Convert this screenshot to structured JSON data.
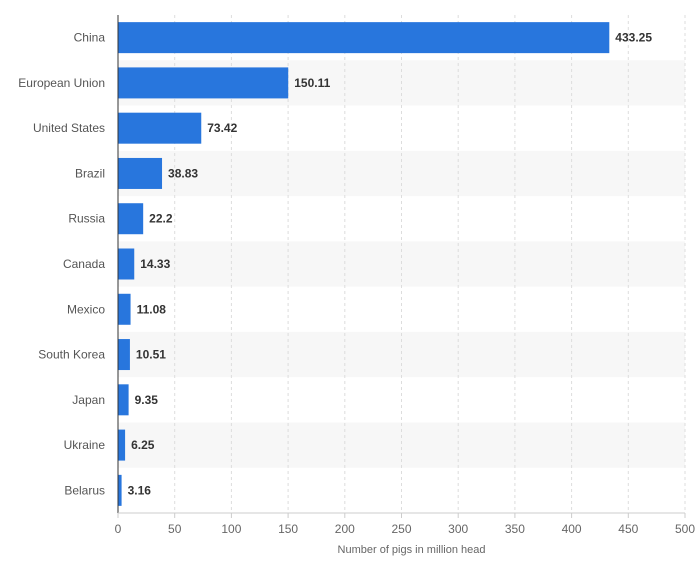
{
  "chart_data": {
    "type": "bar",
    "orientation": "horizontal",
    "title": "",
    "xlabel": "Number of pigs in million head",
    "ylabel": "",
    "categories": [
      "China",
      "European Union",
      "United States",
      "Brazil",
      "Russia",
      "Canada",
      "Mexico",
      "South Korea",
      "Japan",
      "Ukraine",
      "Belarus"
    ],
    "values": [
      433.25,
      150.11,
      73.42,
      38.83,
      22.2,
      14.33,
      11.08,
      10.51,
      9.35,
      6.25,
      3.16
    ],
    "value_labels": [
      "433.25",
      "150.11",
      "73.42",
      "38.83",
      "22.2",
      "14.33",
      "11.08",
      "10.51",
      "9.35",
      "6.25",
      "3.16"
    ],
    "xlim": [
      0,
      500
    ],
    "x_ticks": [
      0,
      50,
      100,
      150,
      200,
      250,
      300,
      350,
      400,
      450,
      500
    ],
    "x_tick_labels": [
      "0",
      "50",
      "100",
      "150",
      "200",
      "250",
      "300",
      "350",
      "400",
      "450",
      "500"
    ],
    "grid": true,
    "legend": "none",
    "colors": {
      "bar": "#2876dd",
      "band": "#f7f7f7",
      "grid": "#dddddd",
      "axis": "#333333"
    }
  }
}
